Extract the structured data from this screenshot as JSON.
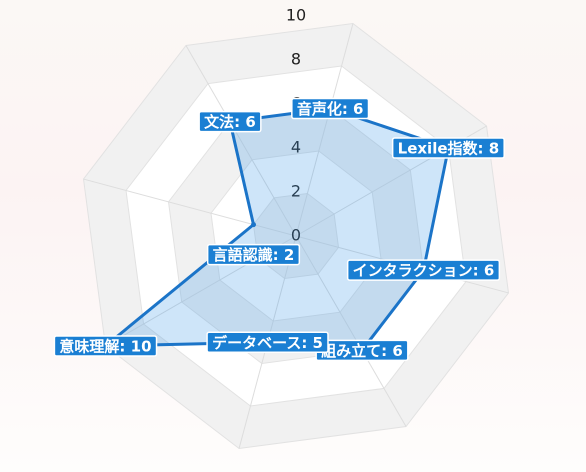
{
  "chart_data": {
    "type": "radar",
    "r_max": 10,
    "ticks": [
      "0",
      "2",
      "4",
      "6",
      "8",
      "10"
    ],
    "categories": [
      "Lexile指数",
      "インタラクション",
      "組み立て",
      "データベース",
      "意味理解",
      "言語認識",
      "文法",
      "音声化"
    ],
    "values": [
      8,
      6,
      6,
      5,
      10,
      2,
      6,
      6
    ],
    "data_labels": [
      "Lexile指数: 8",
      "インタラクション: 6",
      "組み立て: 6",
      "データベース: 5",
      "意味理解: 10",
      "言語認識: 2",
      "文法: 6",
      "音声化: 6"
    ],
    "grid": true,
    "colors": {
      "line": "#1b74c8",
      "fill": "rgba(60,150,230,0.25)",
      "label_bg": "#1a7fd3"
    }
  }
}
